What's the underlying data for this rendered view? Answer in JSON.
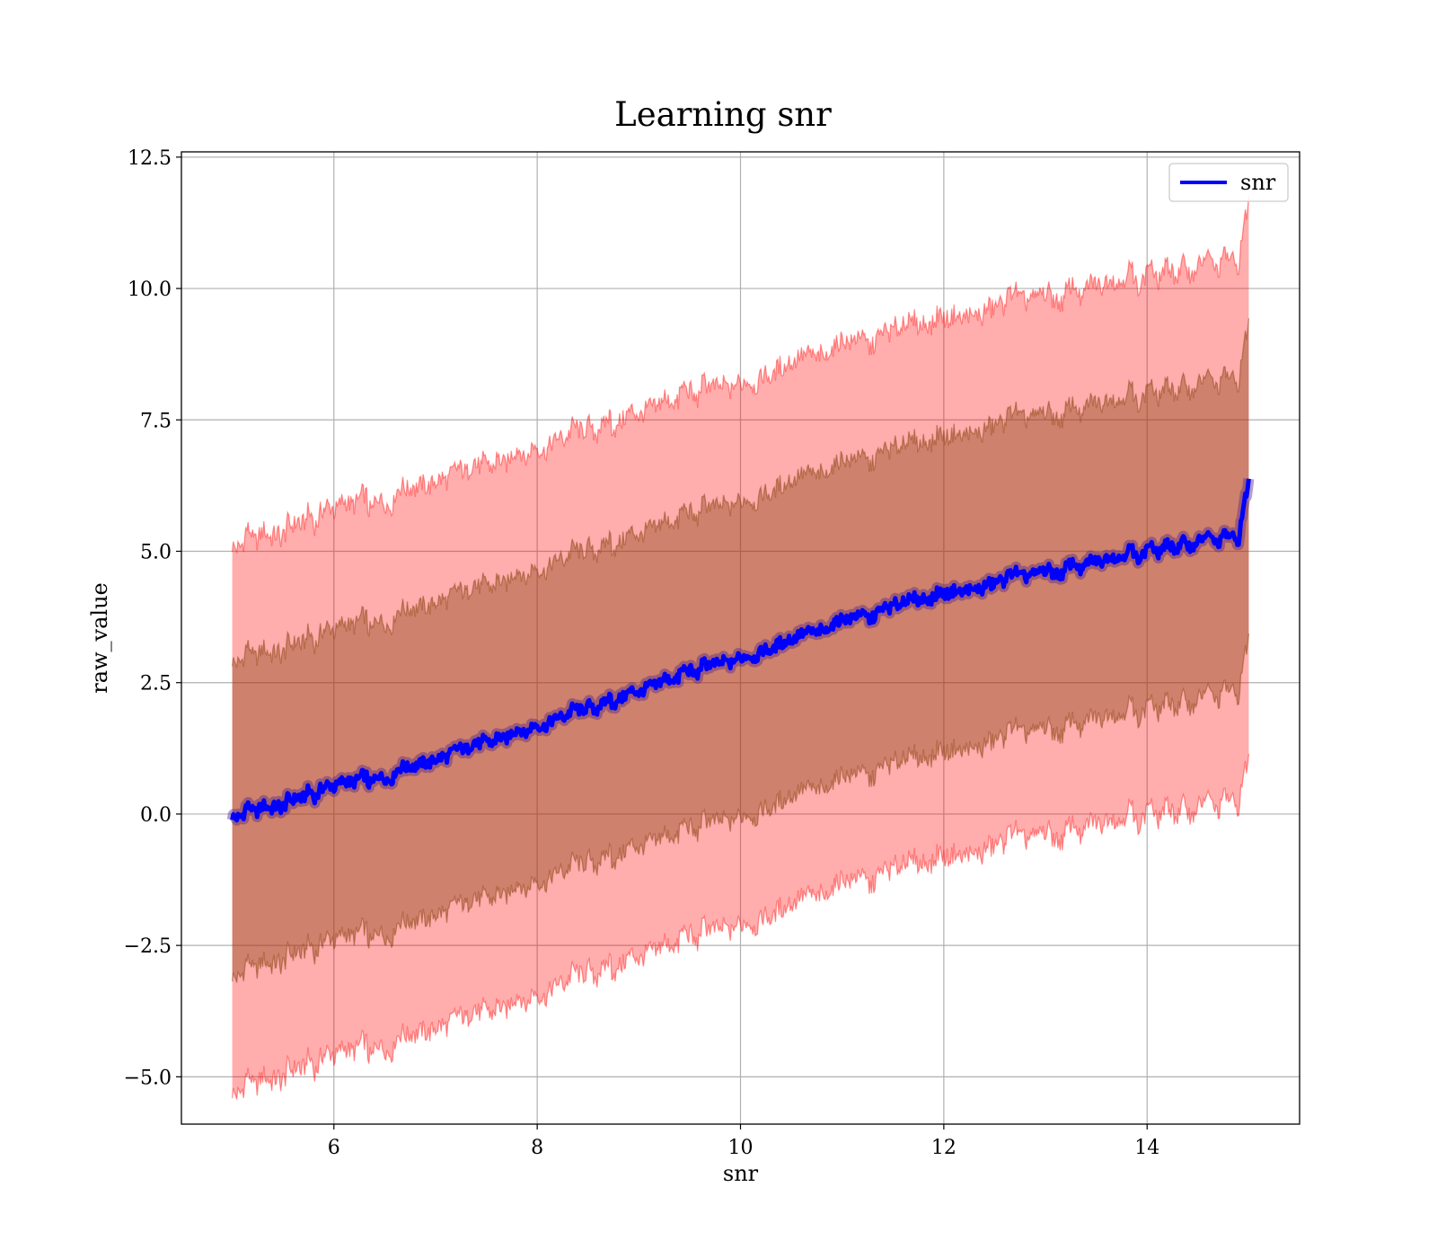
{
  "chart_data": {
    "type": "line",
    "title": "Learning snr",
    "xlabel": "snr",
    "ylabel": "raw_value",
    "xlim": [
      4.5,
      15.5
    ],
    "ylim": [
      -5.9,
      12.6
    ],
    "xticks": [
      6,
      8,
      10,
      12,
      14
    ],
    "xtick_labels": [
      "6",
      "8",
      "10",
      "12",
      "14"
    ],
    "yticks": [
      -5.0,
      -2.5,
      0.0,
      2.5,
      5.0,
      7.5,
      10.0,
      12.5
    ],
    "ytick_labels": [
      "−5.0",
      "−2.5",
      "0.0",
      "2.5",
      "5.0",
      "7.5",
      "10.0",
      "12.5"
    ],
    "grid": true,
    "legend": {
      "placement": "top-right",
      "entries": [
        "snr"
      ]
    },
    "colors": {
      "mean_line": "#0000ff",
      "outer_band": "#ff0000",
      "inner_band": "#8b4513"
    },
    "series": [
      {
        "name": "snr",
        "x": [
          5.0,
          5.5,
          6.0,
          6.5,
          7.0,
          7.5,
          8.0,
          8.5,
          9.0,
          9.5,
          10.0,
          10.5,
          11.0,
          11.5,
          12.0,
          12.5,
          13.0,
          13.5,
          14.0,
          14.5,
          14.9,
          15.0
        ],
        "mean": [
          0.0,
          0.2,
          0.5,
          0.75,
          1.05,
          1.4,
          1.7,
          2.0,
          2.35,
          2.7,
          3.0,
          3.3,
          3.65,
          3.95,
          4.2,
          4.4,
          4.6,
          4.8,
          5.0,
          5.2,
          5.25,
          6.3
        ],
        "inner_lower": [
          -3.0,
          -2.75,
          -2.45,
          -2.2,
          -1.9,
          -1.55,
          -1.25,
          -0.95,
          -0.6,
          -0.3,
          0.0,
          0.3,
          0.65,
          0.95,
          1.2,
          1.4,
          1.6,
          1.8,
          2.0,
          2.2,
          2.3,
          3.3
        ],
        "inner_upper": [
          3.0,
          3.15,
          3.45,
          3.75,
          4.05,
          4.4,
          4.7,
          5.0,
          5.35,
          5.7,
          6.0,
          6.3,
          6.65,
          6.95,
          7.2,
          7.4,
          7.6,
          7.8,
          8.0,
          8.2,
          8.25,
          9.3
        ],
        "outer_lower": [
          -5.2,
          -4.95,
          -4.65,
          -4.35,
          -4.05,
          -3.7,
          -3.4,
          -3.05,
          -2.7,
          -2.35,
          -2.05,
          -1.75,
          -1.35,
          -1.05,
          -0.8,
          -0.6,
          -0.4,
          -0.2,
          0.0,
          0.15,
          0.2,
          1.0
        ],
        "outer_upper": [
          5.2,
          5.4,
          5.75,
          6.05,
          6.35,
          6.7,
          7.0,
          7.3,
          7.65,
          8.0,
          8.25,
          8.55,
          8.9,
          9.2,
          9.45,
          9.65,
          9.85,
          10.05,
          10.25,
          10.45,
          10.5,
          11.6
        ]
      }
    ]
  }
}
